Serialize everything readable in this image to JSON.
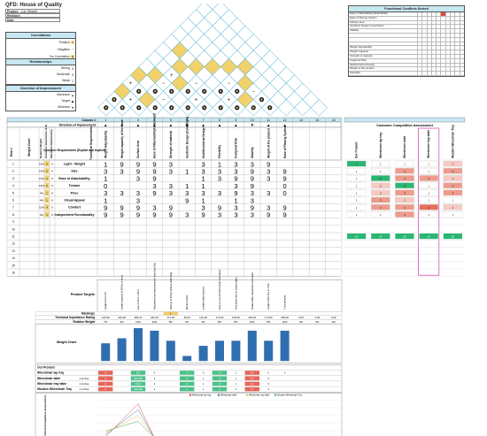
{
  "header": {
    "title": "QFD: House of Quality",
    "fields": [
      {
        "label": "Project",
        "value": "Car Stirwell"
      },
      {
        "label": "Revision",
        "value": ""
      },
      {
        "label": "Date",
        "value": ""
      }
    ]
  },
  "correlations": {
    "title": "Correlations",
    "items": [
      {
        "label": "Positive",
        "symbol": "+",
        "color": "#f2d16b"
      },
      {
        "label": "Negative",
        "symbol": "−",
        "color": "#ffffff"
      },
      {
        "label": "No Correlation",
        "symbol": "●",
        "color": "#f2d16b"
      }
    ]
  },
  "relationships": {
    "title": "Relationships",
    "items": [
      {
        "label": "Strong",
        "symbol": "9"
      },
      {
        "label": "Moderate",
        "symbol": "3"
      },
      {
        "label": "Weak",
        "symbol": "1"
      }
    ]
  },
  "direction_legend": {
    "title": "Direction of Improvement",
    "items": [
      {
        "label": "Maximize",
        "symbol": "▲"
      },
      {
        "label": "Target",
        "symbol": "◆"
      },
      {
        "label": "Minimize",
        "symbol": "▼"
      }
    ]
  },
  "functional_conflicts": {
    "title": "Functional Conflicts Sorted",
    "rows": [
      {
        "label": "Ease of Attachability/detachability",
        "highlight": true
      },
      {
        "label": "Ease of Placing System",
        "highlight": false
      },
      {
        "label": "Surface Area",
        "highlight": false
      },
      {
        "label": "Aesthetic Design (Color/Style)",
        "highlight": false
      },
      {
        "label": "Stability",
        "highlight": false
      },
      {
        "label": "",
        "highlight": false
      },
      {
        "label": "",
        "highlight": false
      },
      {
        "label": "",
        "highlight": false
      },
      {
        "label": "Weight Adjustability",
        "highlight": false
      },
      {
        "label": "Weight Capacity",
        "highlight": false
      },
      {
        "label": "Strength of material",
        "highlight": false
      },
      {
        "label": "Foolproof Risk",
        "highlight": false
      },
      {
        "label": "Multifunctional Design",
        "highlight": false
      },
      {
        "label": "Weight of the product",
        "highlight": false
      },
      {
        "label": "Flexibility",
        "highlight": false
      }
    ]
  },
  "matrix": {
    "column_label": "Column #",
    "direction_label": "Direction of Improvement",
    "row_label": "Row #",
    "weight_chart_label": "Weight Chart",
    "relative_weight_label": "Relative Weight",
    "customer_importance_label": "Customer Importance (1-5)",
    "max_relationship_label": "Maximum Relationship",
    "customer_requirements_label": "Customer Requirements (Explicit and Implicit)",
    "functional_requirements_label": "Functional Requirements",
    "cca_title": "Customer Competitive Assessment",
    "cca_columns": [
      "Our Product",
      "Wheelchair lap tray",
      "Wheelchair table",
      "Wheelchair tray table",
      "Wooden Wheelchair Tray"
    ],
    "columns": [
      "1",
      "2",
      "3",
      "4",
      "5",
      "6",
      "7",
      "8",
      "9",
      "10",
      "11",
      "12",
      "13",
      "14",
      "15"
    ],
    "directions": [
      "▲",
      "▲",
      "▲",
      "▲",
      "▲",
      "◆",
      "▲",
      "▲",
      "▲",
      "▼",
      "▲",
      "▲",
      "",
      "",
      ""
    ],
    "functional_requirements": [
      "Weight Adjustability",
      "Weight capacity of the base",
      "Surface Area",
      "Ease of Attachability/Detachability",
      "Strength of material",
      "Aesthetic Design (Color/Style)",
      "Multifunctional Design",
      "Flexibility",
      "Foolproof Risk",
      "Stability",
      "Weight of the product",
      "Ease of Placing System",
      "",
      "",
      ""
    ],
    "customer_rows": [
      {
        "row": "1",
        "weight": "19%",
        "importance": "5",
        "max": "9",
        "req": "Light - Weight",
        "vals": [
          "1",
          "9",
          "9",
          "9",
          "3",
          "",
          "3",
          "1",
          "3",
          "3",
          "9",
          ""
        ]
      },
      {
        "row": "2",
        "weight": "19%",
        "importance": "5",
        "max": "9",
        "req": "Size",
        "vals": [
          "3",
          "3",
          "9",
          "9",
          "3",
          "1",
          "3",
          "3",
          "3",
          "9",
          "3",
          "9"
        ]
      },
      {
        "row": "3",
        "weight": "15%",
        "importance": "4",
        "max": "9",
        "req": "Ease of Attachability",
        "vals": [
          "1",
          "",
          "3",
          "9",
          "",
          "",
          "1",
          "3",
          "9",
          "9",
          "3",
          "9"
        ]
      },
      {
        "row": "4",
        "weight": "19%",
        "importance": "5",
        "max": "9",
        "req": "Texture",
        "vals": [
          "0",
          "",
          "",
          "3",
          "3",
          "1",
          "1",
          "",
          "3",
          "9",
          "",
          "0"
        ]
      },
      {
        "row": "5",
        "weight": "4%",
        "importance": "1",
        "max": "9",
        "req": "Price",
        "vals": [
          "3",
          "3",
          "3",
          "9",
          "3",
          "3",
          "3",
          "3",
          "9",
          "3",
          "3",
          "0"
        ]
      },
      {
        "row": "6",
        "weight": "4%",
        "importance": "1",
        "max": "9",
        "req": "Visual Appeal",
        "vals": [
          "1",
          "",
          "3",
          "",
          "",
          "9",
          "1",
          "",
          "1",
          "3",
          "",
          ""
        ]
      },
      {
        "row": "7",
        "weight": "15%",
        "importance": "4",
        "max": "9",
        "req": "Comfort",
        "vals": [
          "9",
          "9",
          "9",
          "3",
          "9",
          "",
          "3",
          "9",
          "3",
          "9",
          "3",
          "9"
        ]
      },
      {
        "row": "8",
        "weight": "4%",
        "importance": "1",
        "max": "9",
        "req": "Independent Functionality",
        "vals": [
          "9",
          "9",
          "9",
          "9",
          "9",
          "3",
          "9",
          "3",
          "3",
          "3",
          "9",
          "9"
        ]
      }
    ],
    "empty_rows": [
      "9",
      "10",
      "11",
      "12",
      "13",
      "14",
      "15",
      "16"
    ],
    "cca_ratings": [
      [
        "1",
        "1",
        "1",
        "1",
        "2"
      ],
      [
        "1",
        "1",
        "3",
        "1",
        "3"
      ],
      [
        "1",
        "5",
        "3",
        "3",
        "2"
      ],
      [
        "1",
        "2",
        "5",
        "1",
        "3"
      ],
      [
        "1",
        "2",
        "3",
        "1",
        "3"
      ],
      [
        "1",
        "3",
        "2",
        "1",
        "1"
      ],
      [
        "1",
        "3",
        "3",
        "4",
        "2"
      ],
      [
        "1",
        "1",
        "3",
        "1",
        "1"
      ]
    ],
    "cca_totals": [
      "10",
      "14",
      "20",
      "10",
      "20"
    ],
    "product_targets_label": "Product Targets",
    "product_targets": [
      "weight of 0 to 50",
      "weight capacity of 50 lbs or more",
      "size of 15 in x 30 in",
      "Attachment and detachment in less than 60s",
      "Hold up to 50 lbs without deforming",
      "Neutral colors",
      "multiple table features",
      "Easy to use for both hands and adjust",
      "Fool proof with no sharp edges",
      "Stable within wheelchair movement",
      "weight of the tray in 2 lbs",
      "1 sec process",
      "",
      "",
      ""
    ],
    "rankings_label": "Rankings",
    "rankings": [
      "",
      "",
      "",
      "",
      "1",
      "",
      "",
      "",
      "",
      "",
      "",
      "",
      "",
      "",
      ""
    ],
    "tech_importance_label": "Technical Importance Rating",
    "tech_importance": [
      "123.99",
      "210.00",
      "289.12",
      "262.00",
      "171.00",
      "46.00",
      "131.00",
      "172.00",
      "149.00",
      "264.00",
      "174.00",
      "269.00",
      "0.00",
      "0.00",
      "0.00"
    ],
    "relative_weight": [
      "7%",
      "9%",
      "13%",
      "12%",
      "8%",
      "2%",
      "6%",
      "8%",
      "8%",
      "12%",
      "8%",
      "12%",
      "0%",
      "0%",
      "0%"
    ],
    "weight_chart": [
      7,
      9,
      13,
      12,
      8,
      2,
      6,
      8,
      8,
      12,
      8,
      12,
      0,
      0,
      0
    ]
  },
  "tech_comparison": {
    "header_label": "Our Product",
    "rows": [
      {
        "name": "Wheelchair lap tray",
        "unit": "",
        "vals": [
          "4",
          "",
          "267",
          "4",
          "",
          "1",
          "0",
          "4",
          "1",
          "4.1",
          "0",
          "4",
          ""
        ]
      },
      {
        "name": "Wheelchair table",
        "unit": "1 inches",
        "vals": [
          "3",
          "",
          "153,968",
          "1",
          "",
          "1",
          "1",
          "3",
          "1",
          "6.2",
          "6",
          "",
          ""
        ]
      },
      {
        "name": "Wheelchair tray table",
        "unit": "1 inches",
        "vals": [
          "4",
          "",
          "4/3.3",
          "3",
          "",
          "1",
          "1",
          "3",
          "1",
          "4.9",
          "0",
          "",
          ""
        ]
      },
      {
        "name": "Wooden Wheelchair Tray",
        "unit": "1 inches",
        "vals": [
          "2",
          "",
          "411/206",
          "2",
          "",
          "1",
          "1",
          "2",
          "2",
          "5.7",
          "3",
          "",
          ""
        ]
      }
    ],
    "chart_axis_label": "Technical Competitive Assessment",
    "legend": [
      {
        "name": "Wheelchair lap tray",
        "color": "#e04a3b"
      },
      {
        "name": "Wheelchair table",
        "color": "#3b7fd0"
      },
      {
        "name": "Wheelchair tray table",
        "color": "#f2b84b"
      },
      {
        "name": "Wooden Wheelchair Tray",
        "color": "#4caf50"
      }
    ],
    "column_label": "Column #",
    "columns": [
      "1",
      "2",
      "3",
      "4",
      "5",
      "6",
      "7",
      "8",
      "9",
      "10",
      "11",
      "12",
      "13",
      "14",
      "15"
    ]
  },
  "chart_data": {
    "type": "bar",
    "title": "",
    "categories": [
      "1",
      "2",
      "3",
      "4",
      "5",
      "6",
      "7",
      "8",
      "9",
      "10",
      "11",
      "12",
      "13",
      "14",
      "15"
    ],
    "values": [
      7,
      9,
      13,
      12,
      8,
      2,
      6,
      8,
      8,
      12,
      8,
      12,
      0,
      0,
      0
    ],
    "xlabel": "",
    "ylabel": "Weight Chart",
    "ylim": [
      0,
      14
    ]
  },
  "colors": {
    "header_blue": "#c7e7f2",
    "green": "#2bb673",
    "red": "#e24a3b",
    "bar_blue": "#2f6fb0"
  }
}
